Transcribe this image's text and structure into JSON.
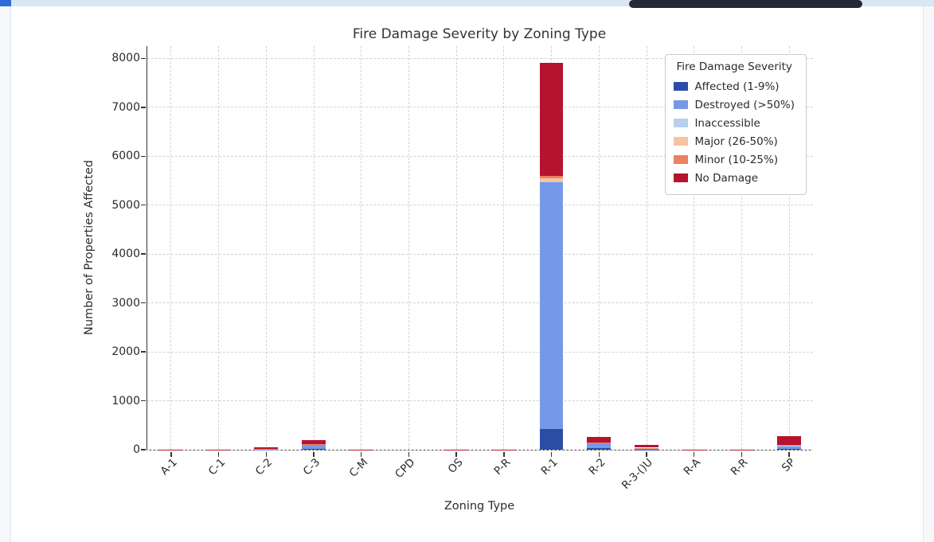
{
  "chart_data": {
    "type": "bar",
    "stacked": true,
    "title": "Fire Damage Severity by Zoning Type",
    "xlabel": "Zoning Type",
    "ylabel": "Number of Properties Affected",
    "ylim": [
      0,
      8250
    ],
    "yticks": [
      0,
      1000,
      2000,
      3000,
      4000,
      5000,
      6000,
      7000,
      8000
    ],
    "grid": true,
    "grid_style": "dashed",
    "legend_title": "Fire Damage Severity",
    "legend_position": "upper right",
    "categories": [
      "A-1",
      "C-1",
      "C-2",
      "C-3",
      "C-M",
      "CPD",
      "OS",
      "P-R",
      "R-1",
      "R-2",
      "R-3-()U",
      "R-A",
      "R-R",
      "SP"
    ],
    "series": [
      {
        "name": "Affected (1-9%)",
        "color": "#2b4ea5",
        "values": [
          0,
          1,
          2,
          10,
          0,
          0,
          0,
          0,
          420,
          25,
          5,
          0,
          0,
          20
        ]
      },
      {
        "name": "Destroyed (>50%)",
        "color": "#7499e6",
        "values": [
          1,
          1,
          5,
          95,
          1,
          0,
          1,
          1,
          5040,
          110,
          30,
          1,
          1,
          60
        ]
      },
      {
        "name": "Inaccessible",
        "color": "#b9cfee",
        "values": [
          0,
          0,
          1,
          5,
          0,
          0,
          0,
          0,
          30,
          5,
          2,
          0,
          0,
          5
        ]
      },
      {
        "name": "Major (26-50%)",
        "color": "#f6c4a4",
        "values": [
          0,
          0,
          1,
          5,
          0,
          0,
          0,
          0,
          60,
          5,
          2,
          0,
          0,
          5
        ]
      },
      {
        "name": "Minor (10-25%)",
        "color": "#ec8163",
        "values": [
          0,
          0,
          3,
          5,
          0,
          0,
          0,
          0,
          40,
          5,
          2,
          0,
          0,
          5
        ]
      },
      {
        "name": "No Damage",
        "color": "#b6132f",
        "values": [
          3,
          3,
          45,
          70,
          3,
          1,
          2,
          2,
          2320,
          110,
          50,
          3,
          3,
          185
        ]
      }
    ]
  }
}
